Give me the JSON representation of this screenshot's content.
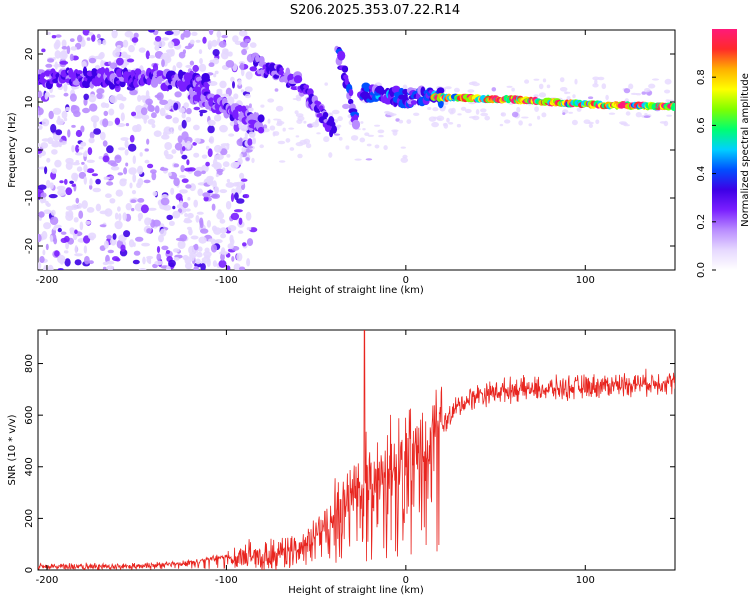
{
  "title": "S206.2025.353.07.22.R14",
  "colors": {
    "snr_line": "#e8251f",
    "axis": "#000000",
    "background": "#ffffff"
  },
  "colormap": [
    "#ffffff",
    "#e6d8ff",
    "#b98cff",
    "#7a1fff",
    "#3d00e6",
    "#0050ff",
    "#00d0ff",
    "#00ff70",
    "#80ff00",
    "#ffff00",
    "#ffb000",
    "#ff2a2a",
    "#ff1a7a"
  ],
  "chart_data": [
    {
      "type": "heatmap",
      "name": "spectrogram",
      "xlabel": "Height of straight line (km)",
      "ylabel": "Frequency (Hz)",
      "xlim": [
        -205,
        150
      ],
      "ylim": [
        -25,
        25
      ],
      "xticks": [
        -200,
        -100,
        0,
        100
      ],
      "yticks": [
        -20,
        -10,
        0,
        10,
        20
      ],
      "colorbar": {
        "label": "Normalized spectral amplitude",
        "range": [
          0,
          1
        ],
        "ticks": [
          0.0,
          0.2,
          0.4,
          0.6,
          0.8
        ]
      },
      "ridges": [
        {
          "x": [
            -205,
            -150,
            -110
          ],
          "y": [
            15,
            15,
            14
          ],
          "amplitude": 0.3
        },
        {
          "x": [
            -120,
            -95,
            -80
          ],
          "y": [
            12,
            8,
            5
          ],
          "amplitude": 0.25
        },
        {
          "x": [
            -85,
            -60,
            -40
          ],
          "y": [
            18,
            14,
            4
          ],
          "amplitude": 0.3
        },
        {
          "x": [
            -38,
            -30,
            -27
          ],
          "y": [
            21,
            10,
            3
          ],
          "amplitude": 0.35
        },
        {
          "x": [
            -25,
            0,
            20
          ],
          "y": [
            12,
            11,
            11
          ],
          "amplitude": 0.4
        },
        {
          "x": [
            15,
            60,
            100,
            150
          ],
          "y": [
            11,
            10.5,
            9.5,
            9
          ],
          "amplitude": 0.9
        }
      ]
    },
    {
      "type": "line",
      "name": "snr",
      "xlabel": "Height of straight line (km)",
      "ylabel": "SNR (10 * v/v)",
      "xlim": [
        -205,
        150
      ],
      "ylim": [
        0,
        930
      ],
      "xticks": [
        -200,
        -100,
        0,
        100
      ],
      "yticks": [
        0,
        200,
        400,
        600,
        800
      ],
      "envelope": {
        "x": [
          -205,
          -150,
          -120,
          -100,
          -80,
          -60,
          -50,
          -40,
          -30,
          -20,
          -10,
          0,
          10,
          20,
          30,
          40,
          60,
          80,
          100,
          120,
          150
        ],
        "y": [
          15,
          15,
          30,
          50,
          60,
          80,
          150,
          210,
          280,
          340,
          380,
          430,
          470,
          560,
          640,
          680,
          700,
          700,
          710,
          720,
          730
        ]
      },
      "peak": {
        "x": -23,
        "y": 930
      }
    }
  ]
}
